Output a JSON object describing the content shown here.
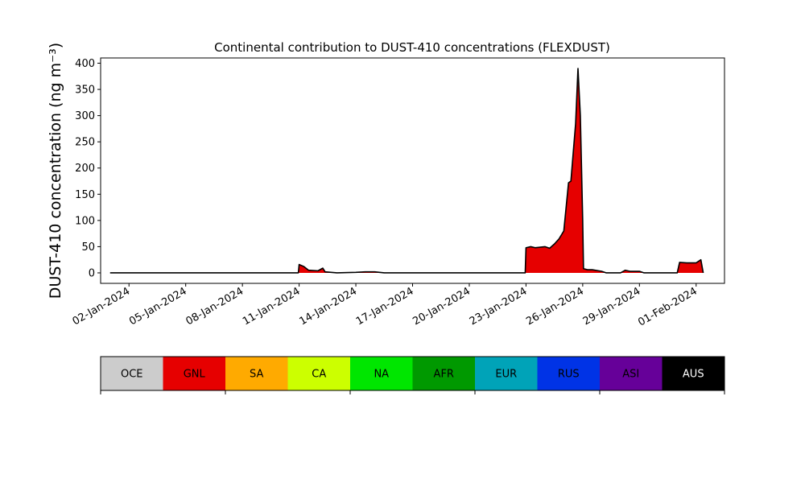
{
  "chart_data": {
    "type": "area",
    "title": "Continental contribution to DUST-410 concentrations (FLEXDUST)",
    "ylabel": "DUST-410 concentration (ng m⁻³)",
    "xlabel": "",
    "xlim": [
      "2023-12-31T12:00",
      "2024-02-02T12:00"
    ],
    "ylim": [
      -20,
      410
    ],
    "yticks": [
      0,
      50,
      100,
      150,
      200,
      250,
      300,
      350,
      400
    ],
    "xticks": [
      "02-Jan-2024",
      "05-Jan-2024",
      "08-Jan-2024",
      "11-Jan-2024",
      "14-Jan-2024",
      "17-Jan-2024",
      "20-Jan-2024",
      "23-Jan-2024",
      "26-Jan-2024",
      "29-Jan-2024",
      "01-Feb-2024"
    ],
    "series": [
      {
        "name": "GNL",
        "color": "#e60000",
        "points": [
          [
            "2024-01-01T00:00",
            0
          ],
          [
            "2024-01-10T23:00",
            0
          ],
          [
            "2024-01-11T00:00",
            16
          ],
          [
            "2024-01-11T06:00",
            12
          ],
          [
            "2024-01-11T12:00",
            5
          ],
          [
            "2024-01-12T00:00",
            4
          ],
          [
            "2024-01-12T06:00",
            9
          ],
          [
            "2024-01-12T09:00",
            2
          ],
          [
            "2024-01-13T00:00",
            0
          ],
          [
            "2024-01-14T00:00",
            1
          ],
          [
            "2024-01-14T12:00",
            2
          ],
          [
            "2024-01-15T00:00",
            2
          ],
          [
            "2024-01-15T12:00",
            0
          ],
          [
            "2024-01-22T23:00",
            0
          ],
          [
            "2024-01-23T00:00",
            48
          ],
          [
            "2024-01-23T06:00",
            50
          ],
          [
            "2024-01-23T12:00",
            48
          ],
          [
            "2024-01-24T00:00",
            50
          ],
          [
            "2024-01-24T06:00",
            47
          ],
          [
            "2024-01-24T12:00",
            55
          ],
          [
            "2024-01-24T18:00",
            65
          ],
          [
            "2024-01-25T00:00",
            80
          ],
          [
            "2024-01-25T06:00",
            172
          ],
          [
            "2024-01-25T09:00",
            175
          ],
          [
            "2024-01-25T12:00",
            230
          ],
          [
            "2024-01-25T15:00",
            285
          ],
          [
            "2024-01-25T18:00",
            390
          ],
          [
            "2024-01-25T21:00",
            300
          ],
          [
            "2024-01-26T00:00",
            100
          ],
          [
            "2024-01-26T01:00",
            8
          ],
          [
            "2024-01-26T06:00",
            6
          ],
          [
            "2024-01-26T12:00",
            6
          ],
          [
            "2024-01-27T00:00",
            3
          ],
          [
            "2024-01-27T06:00",
            0
          ],
          [
            "2024-01-28T00:00",
            0
          ],
          [
            "2024-01-28T06:00",
            5
          ],
          [
            "2024-01-28T12:00",
            3
          ],
          [
            "2024-01-29T00:00",
            3
          ],
          [
            "2024-01-29T06:00",
            0
          ],
          [
            "2024-01-31T00:00",
            0
          ],
          [
            "2024-01-31T03:00",
            20
          ],
          [
            "2024-01-31T12:00",
            19
          ],
          [
            "2024-02-01T00:00",
            19
          ],
          [
            "2024-02-01T06:00",
            25
          ],
          [
            "2024-02-01T09:00",
            0
          ]
        ]
      }
    ],
    "colorbar": {
      "categories": [
        "OCE",
        "GNL",
        "SA",
        "CA",
        "NA",
        "AFR",
        "EUR",
        "RUS",
        "ASI",
        "AUS"
      ],
      "colors": [
        "#cccccc",
        "#e60000",
        "#ffaa00",
        "#ccff00",
        "#00e600",
        "#009900",
        "#00a3b8",
        "#0033e6",
        "#660099",
        "#000000"
      ],
      "label_colors": [
        "#000000",
        "#000000",
        "#000000",
        "#000000",
        "#000000",
        "#000000",
        "#000000",
        "#000000",
        "#000000",
        "#ffffff"
      ]
    },
    "grid": false,
    "legend": "colorbar-below"
  }
}
